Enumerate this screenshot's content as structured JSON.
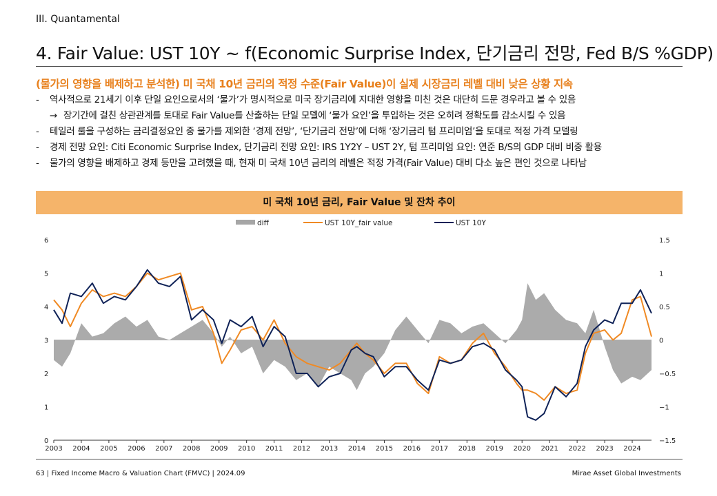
{
  "page": {
    "section": "III. Quantamental",
    "title": "4. Fair Value: UST 10Y ~ f(Economic Surprise Index, 단기금리 전망, Fed B/S %GDP)",
    "subtitle": "(물가의 영향을 배제하고 분석한) 미 국채 10년 금리의 적정 수준(Fair Value)이 실제 시장금리 레벨 대비 낮은 상황 지속",
    "bullets": [
      {
        "marker": "-",
        "text": "역사적으로 21세기 이후 단일 요인으로서의 ‘물가’가 명시적으로 미국 장기금리에 지대한 영향을 미친 것은 대단히 드문 경우라고 볼 수 있음"
      },
      {
        "marker": "→",
        "text": "장기간에 걸친 상관관계를 토대로 Fair Value를 산출하는 단일 모델에 ‘물가 요인’을 투입하는 것은 오히려 정확도를 감소시킬 수 있음"
      },
      {
        "marker": "-",
        "text": "테일러 룰을 구성하는 금리결정요인 중 물가를 제외한 ‘경제 전망’, ‘단기금리 전망’에 더해 ‘장기금리 텀 프리미엄’을 토대로 적정 가격 모델링"
      },
      {
        "marker": "-",
        "text": "경제 전망 요인: Citi Economic Surprise Index, 단기금리 전망 요인: IRS 1Y2Y – UST 2Y, 텀 프리미엄 요인: 연준 B/S의 GDP 대비 비중 활용"
      },
      {
        "marker": "-",
        "text": "물가의 영향을 배제하고 경제 등만을 고려했을 때, 현재 미 국채 10년 금리의 레벨은 적정 가격(Fair Value) 대비 다소 높은 편인 것으로 나타남"
      }
    ],
    "chart_header": "미 국채 10년 금리, Fair Value 및 잔차 추이",
    "footer_left": "63 | Fixed Income Macro & Valuation Chart (FMVC) | 2024.09",
    "footer_right": "Mirae Asset Global Investments"
  },
  "chart_data": {
    "type": "line",
    "legend_position": "top-center",
    "colors": {
      "diff": "#A6A6A6",
      "fair": "#F08A24",
      "ust": "#0F2257"
    },
    "x_ticks": [
      "2003",
      "2004",
      "2005",
      "2006",
      "2007",
      "2008",
      "2009",
      "2010",
      "2011",
      "2012",
      "2013",
      "2014",
      "2015",
      "2016",
      "2017",
      "2018",
      "2019",
      "2020",
      "2021",
      "2022",
      "2023",
      "2024"
    ],
    "xlim": [
      2003.0,
      2024.7
    ],
    "ylim_left": [
      0,
      6
    ],
    "yticks_left": [
      "0",
      "1",
      "2",
      "3",
      "4",
      "5",
      "6"
    ],
    "ylim_right": [
      -1.5,
      1.5
    ],
    "yticks_right": [
      "−1.5",
      "−1",
      "−0.5",
      "0",
      "0.5",
      "1",
      "1.5"
    ],
    "series": [
      {
        "name": "diff",
        "kind": "area",
        "axis": "right",
        "x": [
          2003.0,
          2003.3,
          2003.6,
          2004.0,
          2004.4,
          2004.8,
          2005.2,
          2005.6,
          2006.0,
          2006.4,
          2006.8,
          2007.2,
          2007.6,
          2008.0,
          2008.4,
          2008.8,
          2009.1,
          2009.4,
          2009.8,
          2010.2,
          2010.6,
          2011.0,
          2011.4,
          2011.8,
          2012.2,
          2012.6,
          2013.0,
          2013.4,
          2013.8,
          2014.0,
          2014.3,
          2014.6,
          2015.0,
          2015.4,
          2015.8,
          2016.2,
          2016.6,
          2017.0,
          2017.4,
          2017.8,
          2018.2,
          2018.6,
          2019.0,
          2019.4,
          2019.8,
          2020.0,
          2020.2,
          2020.5,
          2020.8,
          2021.2,
          2021.6,
          2022.0,
          2022.3,
          2022.6,
          2023.0,
          2023.3,
          2023.6,
          2024.0,
          2024.3,
          2024.7
        ],
        "values": [
          -0.3,
          -0.4,
          -0.2,
          0.25,
          0.05,
          0.1,
          0.25,
          0.35,
          0.2,
          0.3,
          0.05,
          0.0,
          0.1,
          0.2,
          0.3,
          0.1,
          -0.1,
          0.05,
          -0.2,
          -0.1,
          -0.5,
          -0.3,
          -0.4,
          -0.6,
          -0.5,
          -0.7,
          -0.4,
          -0.5,
          -0.6,
          -0.75,
          -0.5,
          -0.4,
          -0.2,
          0.15,
          0.35,
          0.15,
          -0.05,
          0.3,
          0.25,
          0.1,
          0.2,
          0.25,
          0.1,
          -0.05,
          0.15,
          0.3,
          0.85,
          0.6,
          0.7,
          0.45,
          0.3,
          0.25,
          0.1,
          0.45,
          -0.1,
          -0.45,
          -0.65,
          -0.55,
          -0.6,
          -0.45
        ]
      },
      {
        "name": "UST 10Y_fair value",
        "kind": "line",
        "axis": "left",
        "x": [
          2003.0,
          2003.3,
          2003.6,
          2004.0,
          2004.4,
          2004.8,
          2005.2,
          2005.6,
          2006.0,
          2006.4,
          2006.8,
          2007.2,
          2007.6,
          2008.0,
          2008.4,
          2008.8,
          2009.1,
          2009.4,
          2009.8,
          2010.2,
          2010.6,
          2011.0,
          2011.4,
          2011.8,
          2012.2,
          2012.6,
          2013.0,
          2013.4,
          2013.8,
          2014.0,
          2014.3,
          2014.6,
          2015.0,
          2015.4,
          2015.8,
          2016.2,
          2016.6,
          2017.0,
          2017.4,
          2017.8,
          2018.2,
          2018.6,
          2019.0,
          2019.4,
          2019.8,
          2020.0,
          2020.2,
          2020.5,
          2020.8,
          2021.2,
          2021.6,
          2022.0,
          2022.3,
          2022.6,
          2023.0,
          2023.3,
          2023.6,
          2024.0,
          2024.3,
          2024.7
        ],
        "values": [
          4.2,
          3.9,
          3.4,
          4.1,
          4.5,
          4.3,
          4.4,
          4.3,
          4.6,
          5.0,
          4.8,
          4.9,
          5.0,
          3.9,
          4.0,
          3.2,
          2.3,
          2.7,
          3.3,
          3.4,
          3.0,
          3.6,
          2.9,
          2.5,
          2.3,
          2.2,
          2.1,
          2.3,
          2.7,
          2.9,
          2.6,
          2.4,
          2.0,
          2.3,
          2.3,
          1.7,
          1.4,
          2.5,
          2.3,
          2.4,
          2.9,
          3.2,
          2.6,
          2.2,
          1.7,
          1.5,
          1.5,
          1.4,
          1.2,
          1.6,
          1.4,
          1.5,
          2.6,
          3.2,
          3.3,
          3.0,
          3.2,
          4.2,
          4.3,
          3.1
        ]
      },
      {
        "name": "UST 10Y",
        "kind": "line",
        "axis": "left",
        "x": [
          2003.0,
          2003.3,
          2003.6,
          2004.0,
          2004.4,
          2004.8,
          2005.2,
          2005.6,
          2006.0,
          2006.4,
          2006.8,
          2007.2,
          2007.6,
          2008.0,
          2008.4,
          2008.8,
          2009.1,
          2009.4,
          2009.8,
          2010.2,
          2010.6,
          2011.0,
          2011.4,
          2011.8,
          2012.2,
          2012.6,
          2013.0,
          2013.4,
          2013.8,
          2014.0,
          2014.3,
          2014.6,
          2015.0,
          2015.4,
          2015.8,
          2016.2,
          2016.6,
          2017.0,
          2017.4,
          2017.8,
          2018.2,
          2018.6,
          2019.0,
          2019.4,
          2019.8,
          2020.0,
          2020.2,
          2020.5,
          2020.8,
          2021.2,
          2021.6,
          2022.0,
          2022.3,
          2022.6,
          2023.0,
          2023.3,
          2023.6,
          2024.0,
          2024.3,
          2024.7
        ],
        "values": [
          3.9,
          3.5,
          4.4,
          4.3,
          4.7,
          4.1,
          4.3,
          4.2,
          4.6,
          5.1,
          4.7,
          4.6,
          4.9,
          3.6,
          3.9,
          3.6,
          2.9,
          3.6,
          3.4,
          3.7,
          2.8,
          3.4,
          3.1,
          2.0,
          2.0,
          1.6,
          1.9,
          2.0,
          2.7,
          2.8,
          2.6,
          2.5,
          1.9,
          2.2,
          2.2,
          1.8,
          1.5,
          2.4,
          2.3,
          2.4,
          2.8,
          2.9,
          2.7,
          2.1,
          1.8,
          1.6,
          0.7,
          0.6,
          0.8,
          1.6,
          1.3,
          1.7,
          2.8,
          3.3,
          3.6,
          3.5,
          4.1,
          4.1,
          4.5,
          3.8
        ]
      }
    ]
  }
}
